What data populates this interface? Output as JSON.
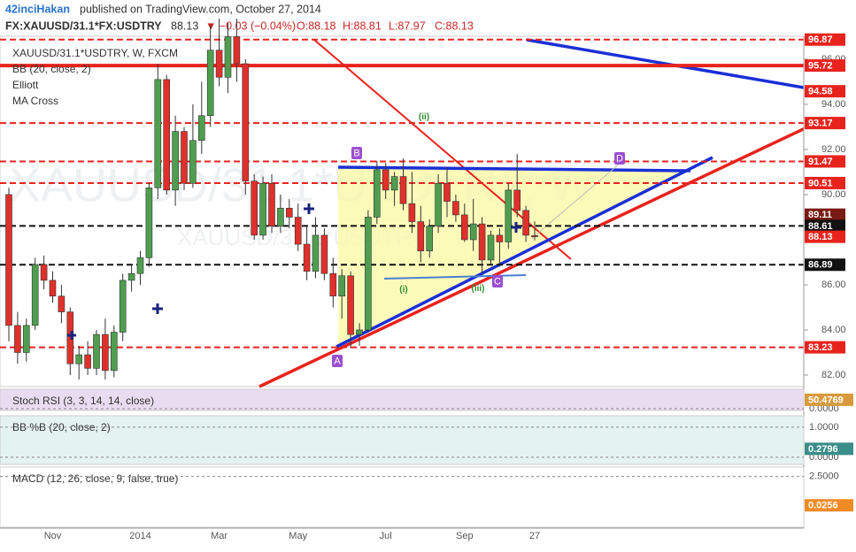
{
  "header": {
    "author": "42inciHakan",
    "published": "published on TradingView.com, October 27, 2014",
    "symbol": "FX:XAUUSD/31.1*FX:USDTRY",
    "last": "88.13",
    "change": "▼ −0.03 (−0.04%)",
    "ohlc": [
      "O:88.18",
      "H:88.81",
      "L:87.97",
      "C:88.13"
    ]
  },
  "chart_data": {
    "type": "candlestick",
    "title": "XAUUSD/31.1*USDTRY, W, FXCM",
    "watermark": "XAUUSD/31.1*USDTRY, W",
    "watermark_small": "XAUUSD/31.1*USDTRY",
    "indicators": [
      "BB (20, close, 2)",
      "Elliott",
      "MA Cross"
    ],
    "annotations": [
      "A",
      "B",
      "C",
      "D",
      "(i)",
      "(ii)",
      "(iii)"
    ],
    "categories": [
      null,
      null,
      null,
      null,
      null,
      "Nov",
      null,
      null,
      null,
      null,
      null,
      null,
      null,
      null,
      null,
      "2014",
      null,
      null,
      null,
      null,
      null,
      null,
      null,
      null,
      "Mar",
      null,
      null,
      null,
      null,
      null,
      null,
      null,
      null,
      "May",
      null,
      null,
      null,
      null,
      null,
      null,
      null,
      null,
      null,
      "Jul",
      null,
      null,
      null,
      null,
      null,
      null,
      null,
      null,
      "Sep",
      null,
      null,
      null,
      null,
      null,
      null,
      null,
      "27"
    ],
    "open": [
      90.0,
      84.2,
      83.0,
      84.2,
      86.9,
      86.2,
      85.5,
      84.8,
      82.5,
      82.9,
      82.3,
      83.8,
      82.2,
      83.9,
      86.2,
      86.5,
      87.2,
      90.3,
      95.1,
      90.2,
      92.8,
      90.5,
      92.4,
      93.5,
      96.4,
      95.2,
      97.0,
      95.8,
      90.6,
      88.2,
      90.5,
      88.6,
      89.4,
      89.0,
      87.8,
      86.6,
      88.2,
      86.5,
      85.5,
      86.4,
      83.8,
      84.0,
      89.0,
      91.1,
      90.2,
      90.8,
      89.6,
      88.8,
      87.5,
      88.6,
      90.5,
      89.7,
      89.1,
      88.0,
      88.7,
      87.1,
      88.2,
      87.9,
      90.2,
      89.3,
      88.18
    ],
    "high": [
      90.3,
      84.8,
      84.5,
      87.2,
      87.3,
      86.6,
      86.0,
      85.0,
      83.3,
      83.5,
      84.0,
      84.5,
      84.2,
      86.5,
      86.9,
      87.5,
      90.5,
      95.8,
      95.3,
      93.5,
      93.0,
      94.0,
      95.0,
      97.5,
      97.8,
      97.6,
      97.8,
      96.0,
      90.9,
      90.8,
      90.9,
      90.0,
      89.8,
      89.6,
      88.6,
      89.0,
      88.5,
      87.2,
      86.7,
      86.6,
      84.3,
      89.3,
      91.5,
      91.4,
      91.0,
      91.6,
      91.0,
      89.5,
      88.9,
      90.9,
      91.2,
      90.0,
      89.6,
      89.8,
      89.0,
      88.4,
      88.5,
      90.5,
      91.8,
      89.5,
      88.81
    ],
    "low": [
      83.5,
      82.5,
      82.6,
      84.0,
      85.8,
      85.2,
      84.3,
      82.0,
      81.8,
      82.0,
      82.0,
      81.8,
      81.9,
      83.5,
      85.7,
      86.0,
      86.8,
      89.8,
      90.0,
      89.5,
      90.2,
      90.3,
      91.8,
      93.0,
      94.8,
      94.5,
      95.0,
      90.0,
      88.0,
      88.0,
      88.3,
      88.3,
      88.5,
      87.5,
      86.2,
      86.3,
      86.2,
      85.0,
      84.5,
      83.2,
      83.3,
      83.9,
      88.7,
      89.8,
      89.5,
      89.3,
      88.3,
      87.0,
      87.2,
      88.3,
      89.0,
      88.8,
      87.9,
      87.5,
      86.5,
      86.9,
      86.8,
      87.6,
      89.0,
      87.9,
      87.97
    ],
    "close": [
      84.2,
      83.0,
      84.2,
      86.9,
      86.2,
      85.5,
      84.8,
      82.5,
      82.9,
      82.3,
      83.8,
      82.2,
      83.9,
      86.2,
      86.5,
      87.2,
      90.3,
      95.1,
      90.2,
      92.8,
      90.5,
      92.4,
      93.5,
      96.4,
      95.2,
      97.0,
      95.8,
      90.6,
      88.2,
      90.5,
      88.6,
      89.4,
      89.0,
      87.8,
      86.6,
      88.2,
      86.5,
      85.5,
      86.4,
      83.8,
      84.0,
      89.0,
      91.1,
      90.2,
      90.8,
      89.6,
      88.8,
      87.5,
      88.6,
      90.5,
      89.7,
      89.1,
      88.0,
      88.7,
      87.1,
      88.2,
      87.9,
      90.2,
      89.3,
      88.2,
      88.13
    ],
    "up_color": "#4f9e4f",
    "down_color": "#e0302b",
    "ylim": [
      81.49,
      96.86
    ],
    "yticks": [
      {
        "value": 96,
        "label": "96.00"
      },
      {
        "value": 94,
        "label": "94.00"
      },
      {
        "value": 92,
        "label": "92.00"
      },
      {
        "value": 90,
        "label": "90.00"
      },
      {
        "value": 86,
        "label": "86.00"
      },
      {
        "value": 84,
        "label": "84.00"
      },
      {
        "value": 82,
        "label": "82.00"
      }
    ],
    "levels": [
      {
        "value": 96.87,
        "color": "#e8231d",
        "style": "dashed"
      },
      {
        "value": 95.72,
        "color": "#e8231d",
        "style": "solid"
      },
      {
        "value": 94.58,
        "color": "#e8231d",
        "style": "none"
      },
      {
        "value": 93.17,
        "color": "#e8231d",
        "style": "dashed"
      },
      {
        "value": 91.47,
        "color": "#e8231d",
        "style": "dashed"
      },
      {
        "value": 90.51,
        "color": "#e8231d",
        "style": "dashed"
      },
      {
        "value": 89.11,
        "color": "#7a1a14",
        "style": "none"
      },
      {
        "value": 88.61,
        "color": "#111111",
        "style": "dashed"
      },
      {
        "value": 88.13,
        "color": "#e8231d",
        "style": "none"
      },
      {
        "value": 86.89,
        "color": "#111111",
        "style": "dashed"
      },
      {
        "value": 83.23,
        "color": "#e8231d",
        "style": "dashed"
      }
    ],
    "panels": [
      {
        "title": "Stoch RSI (3, 3, 14, 14, close)",
        "value": 50.4769,
        "color": "#d89a3c",
        "background": "#eadcf0",
        "ylim": [
          -10,
          110
        ],
        "yticks": [
          {
            "value": 0,
            "label": "0.0000"
          }
        ]
      },
      {
        "title": "BB %B (20, close, 2)",
        "value": 0.2796,
        "color": "#3b8d89",
        "background": "#e4f2f0",
        "ylim": [
          -0.24,
          1.38
        ],
        "yticks": [
          {
            "value": 1,
            "label": "1.0000"
          },
          {
            "value": 0,
            "label": "0.0000"
          }
        ]
      },
      {
        "title": "MACD (12, 26, close, 9, false, true)",
        "value": 0.0256,
        "color": "#f08a24",
        "background": "#ffffff",
        "ylim": [
          -1.85,
          3.3
        ],
        "yticks": [
          {
            "value": 2.5,
            "label": "2.5000"
          }
        ]
      }
    ]
  }
}
